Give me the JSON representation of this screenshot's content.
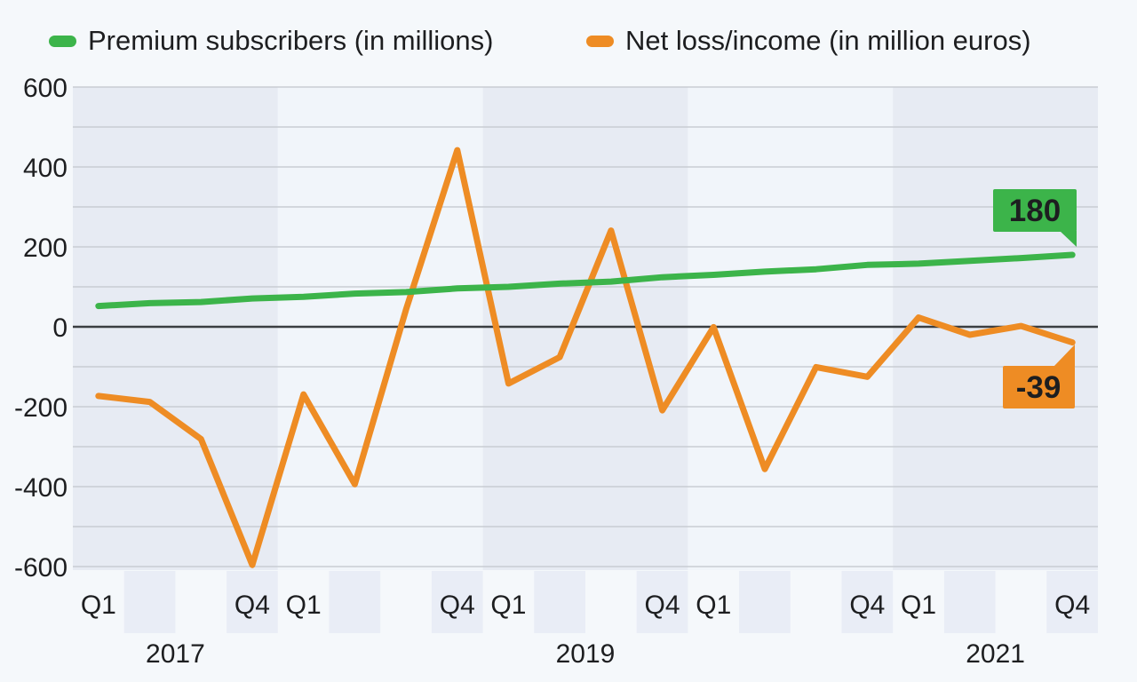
{
  "page": {
    "background": "#f5f8fb"
  },
  "legend": {
    "items": [
      {
        "label": "Premium subscribers (in millions)",
        "color": "#3cb44a"
      },
      {
        "label": "Net loss/income (in million euros)",
        "color": "#ee8c24"
      }
    ]
  },
  "chart_data": {
    "type": "line",
    "x_categories": [
      "2017 Q1",
      "2017 Q2",
      "2017 Q3",
      "2017 Q4",
      "2018 Q1",
      "2018 Q2",
      "2018 Q3",
      "2018 Q4",
      "2019 Q1",
      "2019 Q2",
      "2019 Q3",
      "2019 Q4",
      "2020 Q1",
      "2020 Q2",
      "2020 Q3",
      "2020 Q4",
      "2021 Q1",
      "2021 Q2",
      "2021 Q3",
      "2021 Q4"
    ],
    "series": [
      {
        "name": "Premium subscribers (in millions)",
        "color": "#3cb44a",
        "values": [
          52,
          59,
          62,
          71,
          75,
          83,
          87,
          96,
          100,
          108,
          113,
          124,
          130,
          138,
          144,
          155,
          158,
          165,
          172,
          180
        ],
        "end_label": "180"
      },
      {
        "name": "Net loss/income (in million euros)",
        "color": "#ee8c24",
        "values": [
          -173,
          -188,
          -281,
          -596,
          -169,
          -394,
          43,
          442,
          -142,
          -76,
          241,
          -209,
          -1,
          -356,
          -101,
          -125,
          23,
          -20,
          2,
          -39
        ],
        "end_label": "-39"
      }
    ],
    "y_axis": {
      "min": -600,
      "max": 600,
      "grid_step": 100,
      "label_step": 200,
      "tick_labels": [
        "600",
        "400",
        "200",
        "0",
        "-200",
        "-400",
        "-600"
      ],
      "tick_values": [
        600,
        400,
        200,
        0,
        -200,
        -400,
        -600
      ]
    },
    "x_axis": {
      "tick_indices": [
        0,
        3,
        4,
        7,
        8,
        11,
        12,
        15,
        16,
        19
      ],
      "tick_labels": [
        "Q1",
        "Q4",
        "Q1",
        "Q4",
        "Q1",
        "Q4",
        "Q1",
        "Q4",
        "Q1",
        "Q4"
      ],
      "year_labels": [
        {
          "label": "2017",
          "center_slot": 2
        },
        {
          "label": "2019",
          "center_slot": 10
        },
        {
          "label": "2021",
          "center_slot": 18
        }
      ]
    },
    "grid": true,
    "legend_position": "top"
  },
  "colors": {
    "band_dark": "#e7ebf3",
    "band_light": "#f1f5fa",
    "zebra": "#e9edf6",
    "gridline": "#c9cdd3",
    "zero_line": "#3b3e42",
    "text": "#1d1e20",
    "value_label_text": "#ffffff"
  }
}
